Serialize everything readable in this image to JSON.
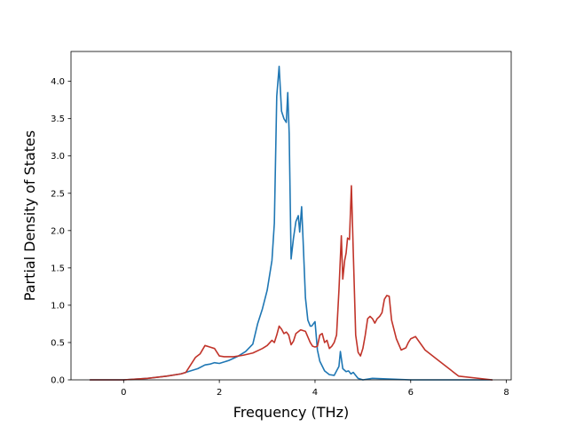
{
  "chart_data": {
    "type": "line",
    "title": "",
    "xlabel": "Frequency (THz)",
    "ylabel": "Partial Density of States",
    "xlim": [
      -1.1,
      8.1
    ],
    "ylim": [
      0,
      4.4
    ],
    "xticks": [
      0,
      2,
      4,
      6,
      8
    ],
    "xtick_labels": [
      "0",
      "2",
      "4",
      "6",
      "8"
    ],
    "yticks": [
      0.0,
      0.5,
      1.0,
      1.5,
      2.0,
      2.5,
      3.0,
      3.5,
      4.0
    ],
    "ytick_labels": [
      "0.0",
      "0.5",
      "1.0",
      "1.5",
      "2.0",
      "2.5",
      "3.0",
      "3.5",
      "4.0"
    ],
    "grid": false,
    "series": [
      {
        "color": "#1f77b4",
        "x": [
          -0.7,
          0.0,
          0.5,
          0.9,
          1.2,
          1.4,
          1.55,
          1.7,
          1.8,
          1.9,
          2.0,
          2.2,
          2.4,
          2.55,
          2.7,
          2.8,
          2.9,
          3.0,
          3.1,
          3.15,
          3.2,
          3.25,
          3.3,
          3.35,
          3.4,
          3.43,
          3.46,
          3.5,
          3.55,
          3.6,
          3.65,
          3.68,
          3.72,
          3.75,
          3.8,
          3.85,
          3.9,
          3.93,
          4.0,
          4.05,
          4.1,
          4.2,
          4.3,
          4.4,
          4.5,
          4.53,
          4.58,
          4.65,
          4.7,
          4.75,
          4.8,
          4.9,
          5.0,
          5.2,
          5.6,
          6.0,
          6.5,
          7.0,
          7.7
        ],
        "y": [
          0.0,
          0.0,
          0.02,
          0.05,
          0.08,
          0.12,
          0.15,
          0.2,
          0.21,
          0.23,
          0.22,
          0.26,
          0.32,
          0.38,
          0.48,
          0.75,
          0.95,
          1.2,
          1.6,
          2.1,
          3.8,
          4.2,
          3.6,
          3.5,
          3.45,
          3.85,
          3.3,
          1.62,
          1.9,
          2.12,
          2.2,
          1.98,
          2.32,
          1.88,
          1.1,
          0.8,
          0.72,
          0.72,
          0.78,
          0.4,
          0.25,
          0.12,
          0.07,
          0.06,
          0.18,
          0.38,
          0.15,
          0.11,
          0.12,
          0.08,
          0.1,
          0.02,
          0.0,
          0.02,
          0.01,
          0.0,
          0.0,
          0.0,
          0.0
        ]
      },
      {
        "color": "#c1342a",
        "x": [
          -0.7,
          0.0,
          0.5,
          0.9,
          1.2,
          1.3,
          1.4,
          1.5,
          1.6,
          1.7,
          1.8,
          1.9,
          2.0,
          2.1,
          2.3,
          2.5,
          2.7,
          2.9,
          3.0,
          3.1,
          3.15,
          3.2,
          3.25,
          3.3,
          3.35,
          3.4,
          3.45,
          3.5,
          3.55,
          3.6,
          3.7,
          3.8,
          3.9,
          3.95,
          4.0,
          4.05,
          4.1,
          4.15,
          4.2,
          4.25,
          4.3,
          4.35,
          4.4,
          4.45,
          4.5,
          4.55,
          4.58,
          4.62,
          4.65,
          4.68,
          4.72,
          4.76,
          4.8,
          4.85,
          4.9,
          4.95,
          5.0,
          5.05,
          5.1,
          5.15,
          5.2,
          5.25,
          5.3,
          5.35,
          5.4,
          5.45,
          5.5,
          5.55,
          5.6,
          5.7,
          5.8,
          5.9,
          5.95,
          6.0,
          6.1,
          6.3,
          6.6,
          6.9,
          7.0,
          7.7
        ],
        "y": [
          0.0,
          0.0,
          0.02,
          0.05,
          0.08,
          0.1,
          0.2,
          0.3,
          0.35,
          0.46,
          0.44,
          0.42,
          0.32,
          0.31,
          0.31,
          0.33,
          0.36,
          0.42,
          0.46,
          0.53,
          0.5,
          0.6,
          0.72,
          0.68,
          0.62,
          0.64,
          0.6,
          0.47,
          0.52,
          0.62,
          0.67,
          0.65,
          0.5,
          0.45,
          0.44,
          0.45,
          0.6,
          0.62,
          0.5,
          0.53,
          0.42,
          0.45,
          0.5,
          0.6,
          1.2,
          1.93,
          1.35,
          1.6,
          1.7,
          1.9,
          1.88,
          2.6,
          1.7,
          0.6,
          0.37,
          0.32,
          0.42,
          0.6,
          0.82,
          0.85,
          0.82,
          0.76,
          0.82,
          0.85,
          0.9,
          1.08,
          1.13,
          1.12,
          0.8,
          0.55,
          0.4,
          0.43,
          0.5,
          0.55,
          0.58,
          0.4,
          0.25,
          0.1,
          0.05,
          0.0
        ]
      }
    ]
  }
}
